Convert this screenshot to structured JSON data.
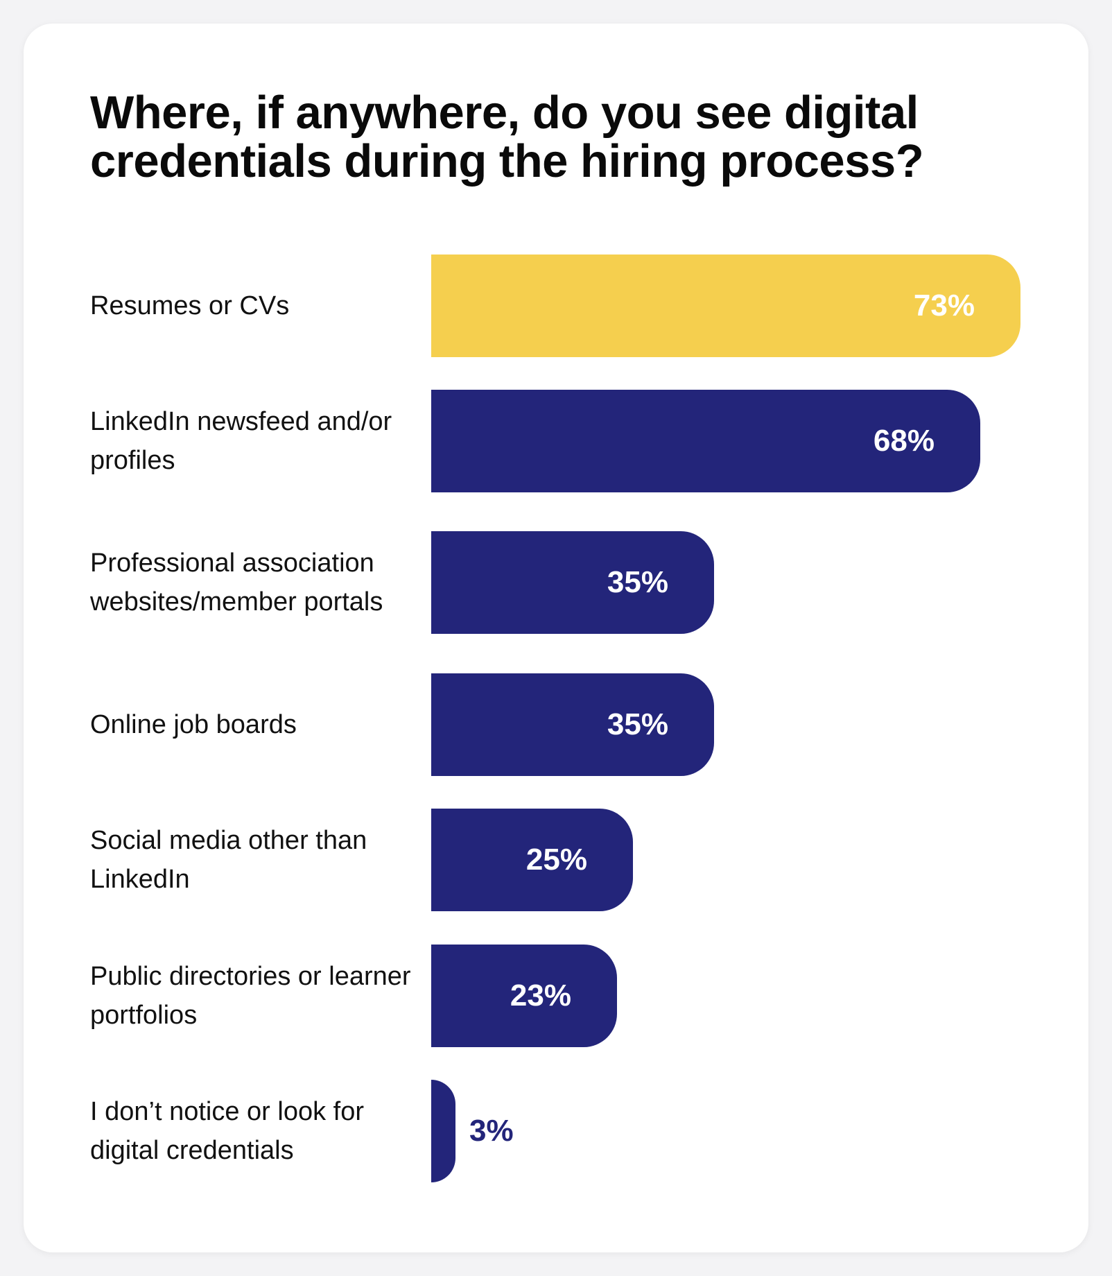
{
  "chart_data": {
    "type": "bar",
    "orientation": "horizontal",
    "title": "Where, if anywhere, do you see digital credentials during the hiring process?",
    "categories": [
      "Resumes or CVs",
      "LinkedIn newsfeed and/or profiles",
      "Professional association websites/member portals",
      "Online job boards",
      "Social media other than LinkedIn",
      "Public directories or learner portfolios",
      "I don’t notice or look for digital credentials"
    ],
    "values": [
      73,
      68,
      35,
      35,
      25,
      23,
      3
    ],
    "value_labels": [
      "73%",
      "68%",
      "35%",
      "35%",
      "25%",
      "23%",
      "3%"
    ],
    "xlim": [
      0,
      73
    ],
    "grid": false,
    "colors": {
      "highlight": "#f5cf4e",
      "bar": "#23257a",
      "label_on_bar": "#ffffff",
      "label_outside": "#23257a"
    },
    "highlight_index": 0
  }
}
